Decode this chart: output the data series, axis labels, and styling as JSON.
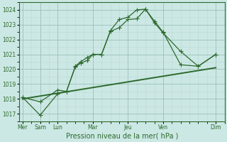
{
  "xlabel": "Pression niveau de la mer( hPa )",
  "bg_color": "#cce8e4",
  "grid_major_color": "#9bbfba",
  "grid_minor_color": "#b8d8d4",
  "line_color": "#2d6a2d",
  "ylim": [
    1016.5,
    1024.5
  ],
  "xlim": [
    -0.2,
    11.5
  ],
  "line1_x": [
    0,
    1,
    2,
    2.5,
    3,
    3.3,
    3.7,
    4.0,
    4.5,
    5.0,
    5.5,
    6.0,
    6.5,
    7.0,
    7.5,
    8.0,
    9.0,
    10.0,
    11.0
  ],
  "line1_y": [
    1018.1,
    1016.9,
    1018.35,
    1018.5,
    1020.15,
    1020.4,
    1020.6,
    1021.0,
    1021.0,
    1022.55,
    1022.8,
    1023.35,
    1023.4,
    1024.05,
    1023.15,
    1022.45,
    1021.2,
    1020.2,
    1021.0
  ],
  "line2_x": [
    0,
    1,
    2,
    2.5,
    3,
    3.3,
    3.7,
    4.0,
    4.5,
    5.0,
    5.5,
    6.0,
    6.5,
    7.0,
    7.5,
    8.0,
    9.0,
    10.0,
    11.0
  ],
  "line2_y": [
    1018.1,
    1017.8,
    1018.6,
    1018.5,
    1020.2,
    1020.5,
    1020.8,
    1021.0,
    1021.0,
    1022.6,
    1023.35,
    1023.5,
    1024.0,
    1024.05,
    1023.25,
    1022.5,
    1020.3,
    1020.2,
    1021.0
  ],
  "line3_x": [
    0,
    11.0
  ],
  "line3_y": [
    1018.0,
    1020.1
  ],
  "ytick_positions": [
    1017,
    1018,
    1019,
    1020,
    1021,
    1022,
    1023,
    1024
  ],
  "xtick_positions": [
    0,
    1,
    2,
    4,
    6,
    8,
    11
  ],
  "xtick_labels": [
    "Mer",
    "Sam",
    "Lun",
    "Mar",
    "Jeu",
    "Ven",
    "Dim"
  ],
  "marker_size": 2.8,
  "linewidth": 0.9,
  "tick_fontsize": 5.5,
  "xlabel_fontsize": 7.0
}
